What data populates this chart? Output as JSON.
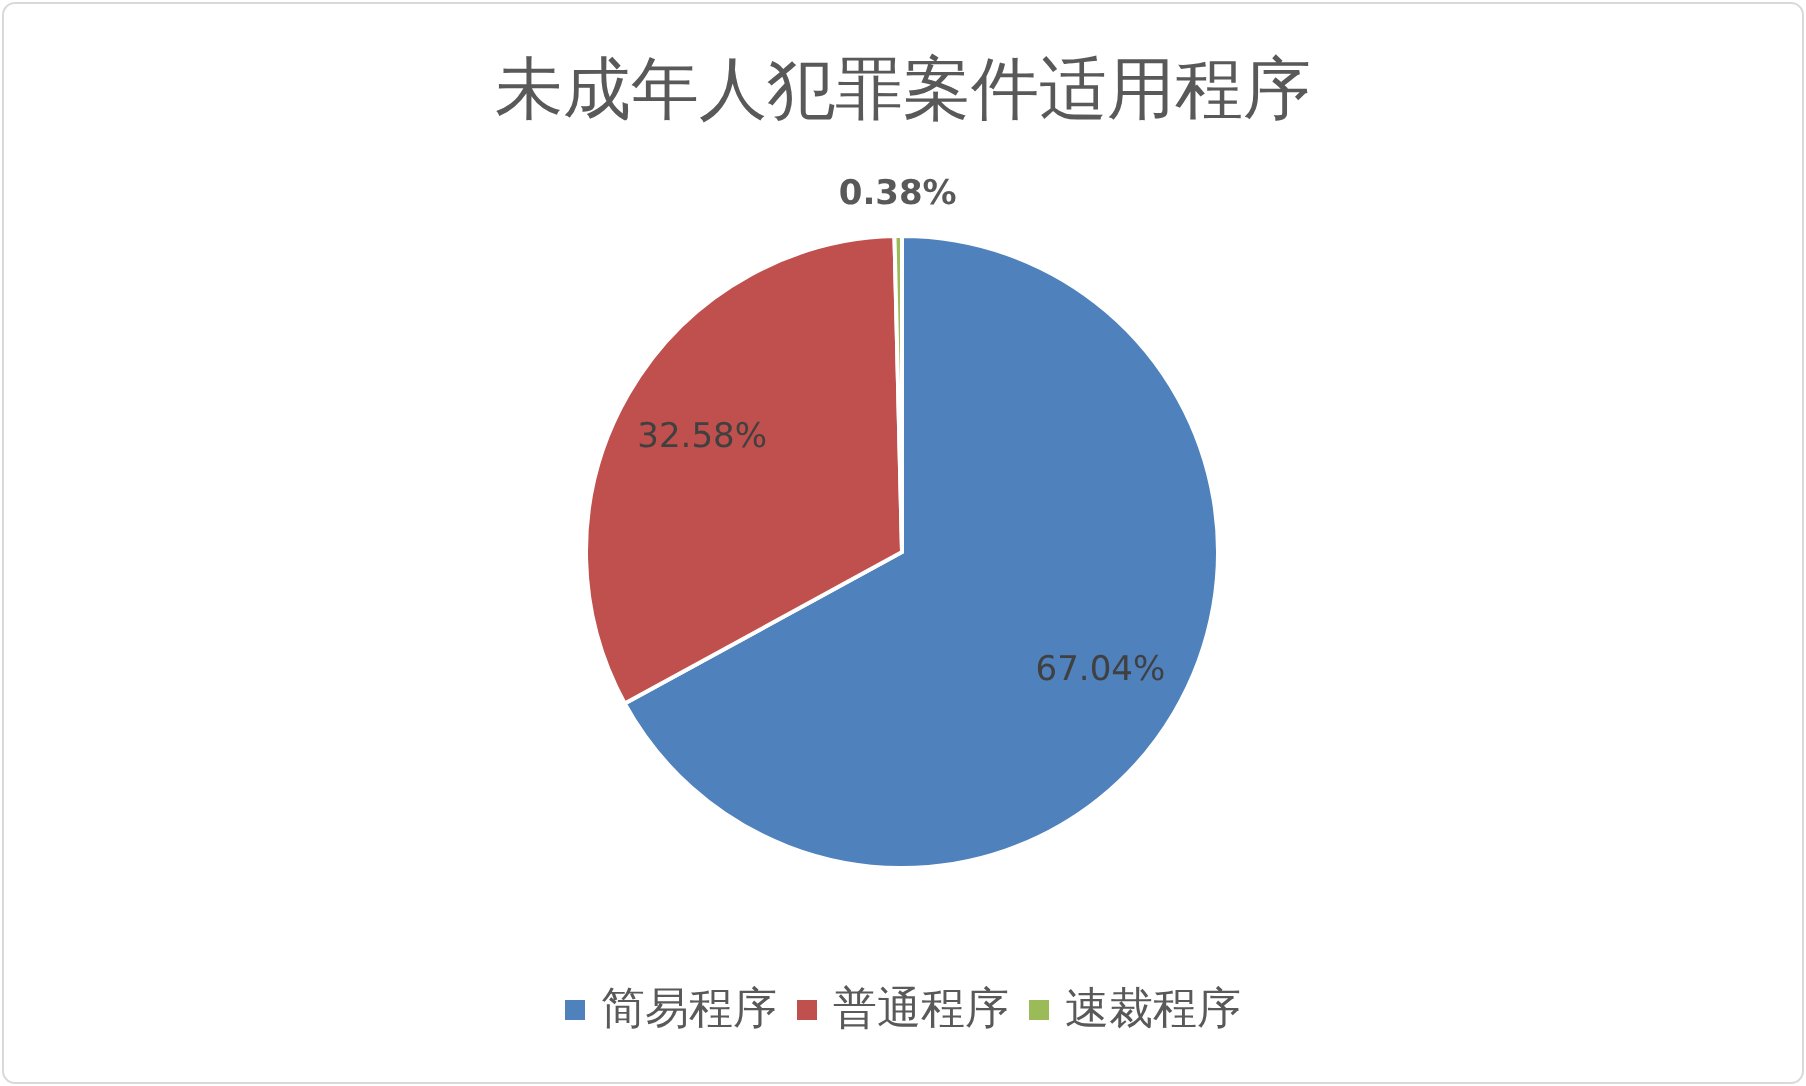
{
  "chart_data": {
    "type": "pie",
    "title": "未成年人犯罪案件适用程序",
    "categories": [
      "简易程序",
      "普通程序",
      "速裁程序"
    ],
    "values": [
      67.04,
      32.58,
      0.38
    ],
    "colors": [
      "#4f81bd",
      "#c0504d",
      "#9bbb59"
    ],
    "value_labels": [
      "67.04%",
      "32.58%",
      "0.38%"
    ],
    "legend": "bottom"
  }
}
